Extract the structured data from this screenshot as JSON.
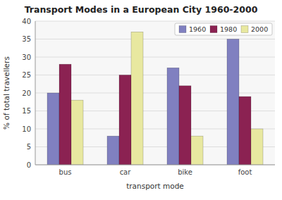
{
  "chart_data": {
    "type": "bar",
    "title": "Transport Modes in a European City 1960-2000",
    "categories": [
      "bus",
      "car",
      "bike",
      "foot"
    ],
    "xlabel": "transport mode",
    "ylabel": "% of total travellers",
    "series": [
      {
        "name": "1960",
        "color": "#8080c0",
        "values": [
          20,
          8,
          27,
          35
        ]
      },
      {
        "name": "1980",
        "color": "#8b2252",
        "values": [
          28,
          25,
          22,
          19
        ]
      },
      {
        "name": "2000",
        "color": "#e8e8a0",
        "values": [
          18,
          37,
          8,
          10
        ]
      }
    ],
    "ylim": [
      0,
      40
    ],
    "yticks": [
      0,
      5,
      10,
      15,
      20,
      25,
      30,
      35,
      40
    ],
    "grid": true,
    "legend": "upper right"
  }
}
